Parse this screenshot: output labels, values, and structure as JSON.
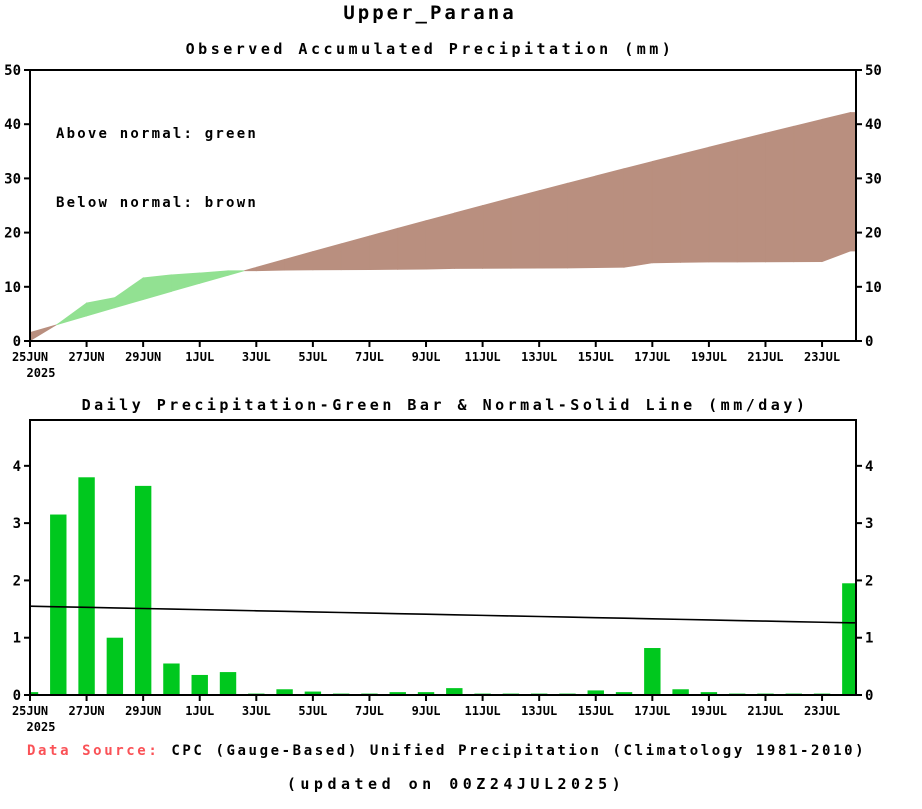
{
  "page_title": "Upper_Parana",
  "colors": {
    "above_normal_green": "#92e192",
    "below_normal_brown": "#b98f7f",
    "bar_green": "#00c81e",
    "line_black": "#000000",
    "data_source_red": "#fa5257",
    "axis_black": "#000000"
  },
  "footer": {
    "data_source_label": "Data Source:",
    "data_source_text": "CPC (Gauge-Based) Unified Precipitation (Climatology 1981-2010)",
    "updated_text": "(updated on 00Z24JUL2025)"
  },
  "chart_data": [
    {
      "type": "area",
      "title": "Observed Accumulated Precipitation (mm)",
      "legend": [
        "Above normal: green",
        "Below normal: brown"
      ],
      "ylim": [
        0,
        50
      ],
      "yticks": [
        0,
        10,
        20,
        30,
        40,
        50
      ],
      "x_year_label": "2025",
      "x_tick_labels": [
        "25JUN",
        "27JUN",
        "29JUN",
        "1JUL",
        "3JUL",
        "5JUL",
        "7JUL",
        "9JUL",
        "11JUL",
        "13JUL",
        "15JUL",
        "17JUL",
        "19JUL",
        "21JUL",
        "23JUL"
      ],
      "x": [
        "25JUN",
        "26JUN",
        "27JUN",
        "28JUN",
        "29JUN",
        "30JUN",
        "1JUL",
        "2JUL",
        "3JUL",
        "4JUL",
        "5JUL",
        "6JUL",
        "7JUL",
        "8JUL",
        "9JUL",
        "10JUL",
        "11JUL",
        "12JUL",
        "13JUL",
        "14JUL",
        "15JUL",
        "16JUL",
        "17JUL",
        "18JUL",
        "19JUL",
        "20JUL",
        "21JUL",
        "22JUL",
        "23JUL",
        "24JUL"
      ],
      "fill_colors": {
        "above_normal": "#92e192",
        "below_normal": "#b98f7f"
      },
      "series": [
        {
          "name": "Observed accumulated precipitation",
          "values": [
            0.05,
            3.2,
            7.0,
            8.0,
            11.65,
            12.2,
            12.55,
            12.95,
            12.97,
            13.07,
            13.13,
            13.15,
            13.17,
            13.22,
            13.27,
            13.39,
            13.41,
            13.43,
            13.45,
            13.47,
            13.55,
            13.6,
            14.42,
            14.52,
            14.57,
            14.59,
            14.61,
            14.63,
            14.65,
            16.6
          ]
        },
        {
          "name": "Normal accumulated precipitation",
          "values": [
            1.55,
            3.09,
            4.62,
            6.14,
            7.65,
            9.15,
            10.64,
            12.12,
            13.59,
            15.05,
            16.5,
            17.94,
            19.37,
            20.79,
            22.2,
            23.6,
            24.99,
            26.37,
            27.74,
            29.1,
            30.45,
            31.79,
            33.12,
            34.44,
            35.75,
            37.05,
            38.34,
            39.62,
            40.89,
            42.15
          ]
        }
      ]
    },
    {
      "type": "bar",
      "title": "Daily Precipitation-Green Bar & Normal-Solid Line (mm/day)",
      "ylim": [
        0,
        4.8
      ],
      "yticks": [
        0,
        1,
        2,
        3,
        4
      ],
      "x_year_label": "2025",
      "x_tick_labels": [
        "25JUN",
        "27JUN",
        "29JUN",
        "1JUL",
        "3JUL",
        "5JUL",
        "7JUL",
        "9JUL",
        "11JUL",
        "13JUL",
        "15JUL",
        "17JUL",
        "19JUL",
        "21JUL",
        "23JUL"
      ],
      "x": [
        "25JUN",
        "26JUN",
        "27JUN",
        "28JUN",
        "29JUN",
        "30JUN",
        "1JUL",
        "2JUL",
        "3JUL",
        "4JUL",
        "5JUL",
        "6JUL",
        "7JUL",
        "8JUL",
        "9JUL",
        "10JUL",
        "11JUL",
        "12JUL",
        "13JUL",
        "14JUL",
        "15JUL",
        "16JUL",
        "17JUL",
        "18JUL",
        "19JUL",
        "20JUL",
        "21JUL",
        "22JUL",
        "23JUL",
        "24JUL"
      ],
      "series": [
        {
          "name": "Daily precipitation (green bar)",
          "type": "bar",
          "color": "#00c81e",
          "values": [
            0.05,
            3.15,
            3.8,
            1.0,
            3.65,
            0.55,
            0.35,
            0.4,
            0.02,
            0.1,
            0.06,
            0.02,
            0.02,
            0.05,
            0.05,
            0.12,
            0.02,
            0.02,
            0.02,
            0.02,
            0.08,
            0.05,
            0.82,
            0.1,
            0.05,
            0.02,
            0.02,
            0.02,
            0.02,
            1.95
          ]
        },
        {
          "name": "Normal precipitation (solid line)",
          "type": "line",
          "color": "#000000",
          "values": [
            1.55,
            1.54,
            1.53,
            1.52,
            1.51,
            1.5,
            1.49,
            1.48,
            1.47,
            1.46,
            1.45,
            1.44,
            1.43,
            1.42,
            1.41,
            1.4,
            1.39,
            1.38,
            1.37,
            1.36,
            1.35,
            1.34,
            1.33,
            1.32,
            1.31,
            1.3,
            1.29,
            1.28,
            1.27,
            1.26
          ]
        }
      ]
    }
  ]
}
